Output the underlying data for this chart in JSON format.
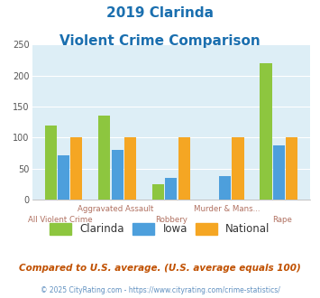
{
  "title_line1": "2019 Clarinda",
  "title_line2": "Violent Crime Comparison",
  "categories": [
    "All Violent Crime",
    "Aggravated Assault",
    "Robbery",
    "Murder & Mans...",
    "Rape"
  ],
  "clarinda": [
    120,
    135,
    25,
    0,
    220
  ],
  "iowa": [
    72,
    80,
    35,
    38,
    87
  ],
  "national": [
    100,
    100,
    100,
    100,
    100
  ],
  "colors": {
    "clarinda": "#8dc63f",
    "iowa": "#4d9fdc",
    "national": "#f5a623"
  },
  "ylim": [
    0,
    250
  ],
  "yticks": [
    0,
    50,
    100,
    150,
    200,
    250
  ],
  "plot_bg": "#ddeef6",
  "title_color": "#1a6faf",
  "xlabel_color": "#b07060",
  "footer_note": "Compared to U.S. average. (U.S. average equals 100)",
  "footer_credit": "© 2025 CityRating.com - https://www.cityrating.com/crime-statistics/",
  "legend_labels": [
    "Clarinda",
    "Iowa",
    "National"
  ]
}
